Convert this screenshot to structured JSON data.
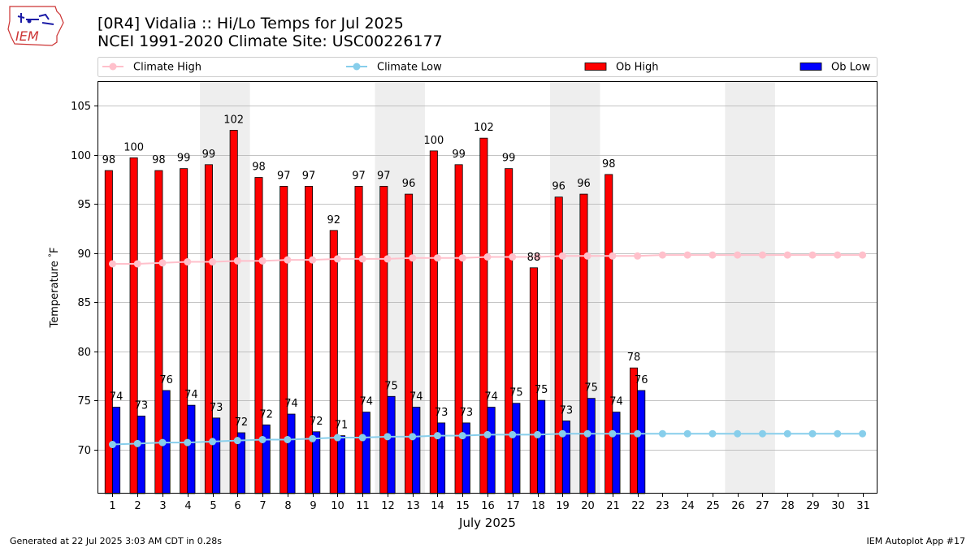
{
  "header": {
    "logo_text": "IEM",
    "title_line1": "[0R4] Vidalia :: Hi/Lo Temps for Jul 2025",
    "title_line2": "NCEI 1991-2020 Climate Site: USC00226177"
  },
  "footer": {
    "left": "Generated at 22 Jul 2025 3:03 AM CDT in 0.28s",
    "right": "IEM Autoplot App #17"
  },
  "colors": {
    "ob_high": "#ff0000",
    "ob_low": "#0000ff",
    "climate_high": "#ffc0cb",
    "climate_low": "#87ceeb",
    "weekend_shade": "#eeeeee",
    "grid": "#b0b0b0"
  },
  "chart_data": {
    "type": "bar",
    "xlabel": "July 2025",
    "ylabel": "Temperature $^\\circ$F",
    "ylim": [
      65.5,
      107.5
    ],
    "yticks": [
      70,
      75,
      80,
      85,
      90,
      95,
      100,
      105
    ],
    "grid": "horizontal",
    "legend_placement": "top",
    "days": [
      1,
      2,
      3,
      4,
      5,
      6,
      7,
      8,
      9,
      10,
      11,
      12,
      13,
      14,
      15,
      16,
      17,
      18,
      19,
      20,
      21,
      22,
      23,
      24,
      25,
      26,
      27,
      28,
      29,
      30,
      31
    ],
    "shaded_day_pairs": [
      [
        5,
        6
      ],
      [
        12,
        13
      ],
      [
        19,
        20
      ],
      [
        26,
        27
      ]
    ],
    "series": [
      {
        "name": "Climate High",
        "kind": "line",
        "values": [
          88.9,
          88.9,
          89.0,
          89.1,
          89.1,
          89.2,
          89.2,
          89.3,
          89.3,
          89.4,
          89.4,
          89.4,
          89.5,
          89.5,
          89.5,
          89.6,
          89.6,
          89.6,
          89.7,
          89.7,
          89.7,
          89.7,
          89.8,
          89.8,
          89.8,
          89.8,
          89.8,
          89.8,
          89.8,
          89.8,
          89.8
        ]
      },
      {
        "name": "Climate Low",
        "kind": "line",
        "values": [
          70.5,
          70.6,
          70.7,
          70.7,
          70.8,
          70.9,
          71.0,
          71.0,
          71.1,
          71.2,
          71.2,
          71.3,
          71.3,
          71.4,
          71.4,
          71.5,
          71.5,
          71.5,
          71.6,
          71.6,
          71.6,
          71.6,
          71.6,
          71.6,
          71.6,
          71.6,
          71.6,
          71.6,
          71.6,
          71.6,
          71.6
        ]
      },
      {
        "name": "Ob High",
        "kind": "bar",
        "values": [
          98.4,
          99.7,
          98.4,
          98.6,
          99.0,
          102.5,
          97.7,
          96.8,
          96.8,
          92.3,
          96.8,
          96.8,
          96.0,
          100.4,
          99.0,
          101.7,
          98.6,
          88.5,
          95.7,
          96.0,
          98.0,
          78.3
        ],
        "labels": [
          "98",
          "100",
          "98",
          "99",
          "99",
          "102",
          "98",
          "97",
          "97",
          "92",
          "97",
          "97",
          "96",
          "100",
          "99",
          "102",
          "99",
          "88",
          "96",
          "96",
          "98",
          "78"
        ]
      },
      {
        "name": "Ob Low",
        "kind": "bar",
        "values": [
          74.3,
          73.4,
          76.0,
          74.5,
          73.2,
          71.7,
          72.5,
          73.6,
          71.8,
          71.4,
          73.8,
          75.4,
          74.3,
          72.7,
          72.7,
          74.3,
          74.7,
          75.0,
          72.9,
          75.2,
          73.8,
          76.0
        ],
        "labels": [
          "74",
          "73",
          "76",
          "74",
          "73",
          "72",
          "72",
          "74",
          "72",
          "71",
          "74",
          "75",
          "74",
          "73",
          "73",
          "74",
          "75",
          "75",
          "73",
          "75",
          "74",
          "76"
        ]
      }
    ]
  }
}
